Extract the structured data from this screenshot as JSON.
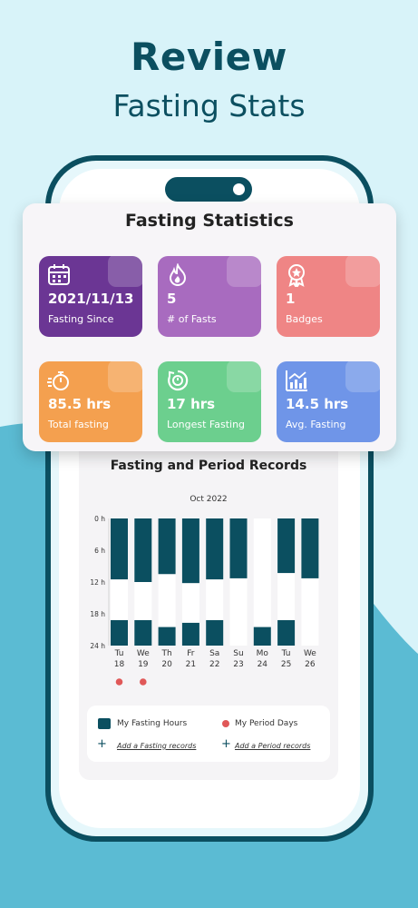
{
  "hero": {
    "title": "Review",
    "subtitle": "Fasting Stats"
  },
  "stats": {
    "title": "Fasting Statistics",
    "tiles": [
      {
        "value": "2021/11/13",
        "label": "Fasting Since",
        "icon": "calendar-icon",
        "color": "#6b3694"
      },
      {
        "value": "5",
        "label": "# of Fasts",
        "icon": "fire-icon",
        "color": "#a86bbf"
      },
      {
        "value": "1",
        "label": "Badges",
        "icon": "badge-icon",
        "color": "#ef8585"
      },
      {
        "value": "85.5 hrs",
        "label": "Total fasting",
        "icon": "stopwatch-icon",
        "color": "#f4a04f"
      },
      {
        "value": "17 hrs",
        "label": "Longest Fasting",
        "icon": "timer-icon",
        "color": "#6ccf8e"
      },
      {
        "value": "14.5 hrs",
        "label": "Avg. Fasting",
        "icon": "chart-icon",
        "color": "#6f95e8"
      }
    ]
  },
  "records": {
    "title": "Fasting and Period Records",
    "month": "Oct 2022",
    "legend": {
      "fasting_label": "My Fasting Hours",
      "period_label": "My Period Days",
      "add_fasting": "Add a Fasting records",
      "add_period": "Add a Period records"
    }
  },
  "chart_data": {
    "type": "bar",
    "title": "Fasting and Period Records",
    "subtitle": "Oct 2022",
    "y_ticks": [
      "0 h",
      "6 h",
      "12 h",
      "18 h",
      "24 h"
    ],
    "ylim": [
      0,
      24
    ],
    "y_inverted": true,
    "categories": [
      [
        "Tu",
        "18"
      ],
      [
        "We",
        "19"
      ],
      [
        "Th",
        "20"
      ],
      [
        "Fr",
        "21"
      ],
      [
        "Sa",
        "22"
      ],
      [
        "Su",
        "23"
      ],
      [
        "Mo",
        "24"
      ],
      [
        "Tu",
        "25"
      ],
      [
        "We",
        "26"
      ]
    ],
    "series": [
      {
        "name": "My Fasting Hours",
        "color": "#0b4f60",
        "segments": [
          [
            [
              0,
              11.5
            ],
            [
              19.2,
              24
            ]
          ],
          [
            [
              0,
              12
            ],
            [
              19.2,
              24
            ]
          ],
          [
            [
              0,
              10.5
            ],
            [
              20.5,
              24
            ]
          ],
          [
            [
              0,
              12.2
            ],
            [
              19.7,
              24
            ]
          ],
          [
            [
              0,
              11.5
            ],
            [
              19.2,
              24
            ]
          ],
          [
            [
              0,
              11.3
            ]
          ],
          [
            [
              20.5,
              24
            ]
          ],
          [
            [
              0,
              10.3
            ],
            [
              19.2,
              24
            ]
          ],
          [
            [
              0,
              11.3
            ]
          ]
        ]
      },
      {
        "name": "My Period Days",
        "color": "#e05858",
        "days": [
          "18",
          "19"
        ]
      }
    ]
  }
}
